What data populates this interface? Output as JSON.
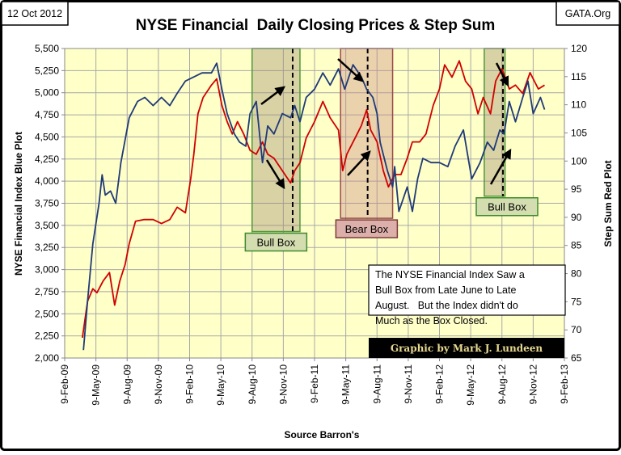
{
  "header": {
    "date": "12 Oct 2012",
    "source_site": "GATA.Org"
  },
  "chart_data": {
    "type": "line",
    "title": "NYSE Financial  Daily Closing Prices & Step Sum",
    "xlabel": "Source Barron's",
    "ylabel_left": "NYSE Financial Index Blue Plot",
    "ylabel_right": "Step Sum Red Plot",
    "x_units": "months since 9-Feb-09",
    "xlim": [
      0,
      48
    ],
    "x_ticks": [
      "9-Feb-09",
      "9-May-09",
      "9-Aug-09",
      "9-Nov-09",
      "9-Feb-10",
      "9-May-10",
      "9-Aug-10",
      "9-Nov-10",
      "9-Feb-11",
      "9-May-11",
      "9-Aug-11",
      "9-Nov-11",
      "9-Feb-12",
      "9-May-12",
      "9-Aug-12",
      "9-Nov-12",
      "9-Feb-13"
    ],
    "y_left": {
      "lim": [
        2000,
        5500
      ],
      "ticks": [
        "2,000",
        "2,250",
        "2,500",
        "2,750",
        "3,000",
        "3,250",
        "3,500",
        "3,750",
        "4,000",
        "4,250",
        "4,500",
        "4,750",
        "5,000",
        "5,250",
        "5,500"
      ]
    },
    "y_right": {
      "lim": [
        65,
        120
      ],
      "ticks": [
        "65",
        "70",
        "75",
        "80",
        "85",
        "90",
        "95",
        "100",
        "105",
        "110",
        "115",
        "120"
      ]
    },
    "grid": true,
    "series": [
      {
        "name": "NYSE Financial Index",
        "axis": "left",
        "color": "#1F3A78",
        "x": [
          1.8,
          2.2,
          2.7,
          3.3,
          3.6,
          3.9,
          4.4,
          4.9,
          5.4,
          6.2,
          7.0,
          7.7,
          8.5,
          9.3,
          10.1,
          10.8,
          11.6,
          12.4,
          13.2,
          14.1,
          14.6,
          15.1,
          15.6,
          16.3,
          16.8,
          17.4,
          17.8,
          18.4,
          19.0,
          19.5,
          20.1,
          20.9,
          21.7,
          22.1,
          22.6,
          23.2,
          24.0,
          24.8,
          25.5,
          26.3,
          26.9,
          27.7,
          28.5,
          29.0,
          29.6,
          30.0,
          30.3,
          31.0,
          31.5,
          31.7,
          32.1,
          32.9,
          33.4,
          33.9,
          34.4,
          35.2,
          36.0,
          36.8,
          37.5,
          38.3,
          39.1,
          39.9,
          40.6,
          41.2,
          41.8,
          42.2,
          42.7,
          43.3,
          44.0,
          44.5,
          45.0,
          45.7,
          46.1
        ],
        "y": [
          2090,
          2645,
          3290,
          3750,
          4072,
          3842,
          3888,
          3750,
          4210,
          4717,
          4901,
          4947,
          4855,
          4947,
          4855,
          4993,
          5132,
          5178,
          5224,
          5224,
          5334,
          5040,
          4763,
          4533,
          4441,
          4395,
          4763,
          4901,
          4210,
          4625,
          4533,
          4763,
          4717,
          4855,
          4671,
          4947,
          5040,
          5224,
          5086,
          5270,
          5040,
          5316,
          5178,
          5040,
          4947,
          4763,
          4441,
          4118,
          3934,
          4164,
          3658,
          3934,
          3658,
          4026,
          4257,
          4210,
          4210,
          4164,
          4395,
          4579,
          4026,
          4210,
          4441,
          4349,
          4579,
          4533,
          4901,
          4671,
          4947,
          5132,
          4763,
          4947,
          4809
        ]
      },
      {
        "name": "Step Sum",
        "axis": "right",
        "color": "#D00000",
        "x": [
          1.7,
          2.2,
          2.7,
          3.1,
          3.7,
          4.3,
          4.8,
          5.3,
          5.8,
          6.2,
          6.8,
          7.6,
          8.5,
          9.3,
          10.1,
          10.8,
          11.6,
          12.1,
          12.4,
          12.8,
          13.3,
          14.1,
          14.6,
          15.1,
          15.6,
          16.1,
          16.6,
          17.2,
          17.8,
          18.4,
          19.0,
          19.5,
          20.1,
          20.9,
          21.7,
          22.1,
          22.6,
          23.2,
          24.0,
          24.8,
          25.5,
          26.3,
          26.7,
          27.1,
          27.9,
          28.5,
          29.0,
          29.4,
          30.0,
          30.6,
          31.1,
          31.7,
          32.3,
          32.9,
          33.4,
          34.1,
          34.7,
          35.4,
          36.0,
          36.5,
          37.2,
          37.9,
          38.5,
          39.1,
          39.7,
          40.2,
          40.9,
          41.4,
          42.0,
          42.7,
          43.3,
          44.0,
          44.7,
          45.5,
          46.1
        ],
        "y": [
          68.6,
          75.1,
          77.3,
          76.6,
          78.7,
          80.2,
          74.4,
          78.7,
          81.6,
          85.3,
          89.3,
          89.6,
          89.6,
          88.9,
          89.6,
          91.8,
          90.8,
          96.8,
          101.2,
          108.4,
          111.3,
          113.5,
          114.6,
          109.9,
          107.0,
          104.8,
          107.0,
          104.8,
          101.9,
          101.2,
          103.4,
          101.2,
          100.5,
          98.3,
          96.1,
          98.3,
          99.7,
          104.1,
          107.0,
          110.6,
          107.7,
          105.5,
          98.3,
          101.2,
          104.1,
          106.3,
          109.1,
          105.5,
          103.4,
          98.3,
          95.4,
          97.6,
          97.6,
          100.5,
          103.4,
          103.4,
          104.8,
          109.9,
          112.8,
          117.1,
          114.9,
          117.8,
          114.2,
          112.8,
          108.4,
          111.3,
          108.4,
          114.2,
          116.4,
          112.8,
          113.5,
          112.0,
          115.7,
          112.8,
          113.5
        ]
      }
    ],
    "annotations": {
      "boxes": [
        {
          "label": "Bull Box",
          "kind": "bull",
          "x_range": [
            18.0,
            22.6
          ],
          "y_left_range": [
            3430,
            5500
          ],
          "marker_x": 21.9
        },
        {
          "label": "Bear Box",
          "kind": "bear",
          "x_range": [
            26.5,
            31.5
          ],
          "y_left_range": [
            3580,
            5500
          ],
          "marker_x": 29.1
        },
        {
          "label": "Bull Box",
          "kind": "bull",
          "x_range": [
            40.3,
            42.3
          ],
          "y_left_range": [
            3830,
            5500
          ],
          "marker_x": 42.1
        }
      ],
      "note": [
        "The NYSE Financial Index Saw a",
        "Bull Box from Late June to Late",
        "August.   But the Index didn't do",
        "Much as the Box Closed."
      ],
      "credit": "Graphic by Mark J. Lundeen"
    },
    "colors": {
      "plot_bg": "#FFFFC8",
      "grid": "#A8A8A8",
      "bull_fill": "#9C8A6A",
      "bull_border": "#4E9A3A",
      "bear_fill": "#C88A80",
      "bear_border": "#9A4A4A"
    }
  }
}
